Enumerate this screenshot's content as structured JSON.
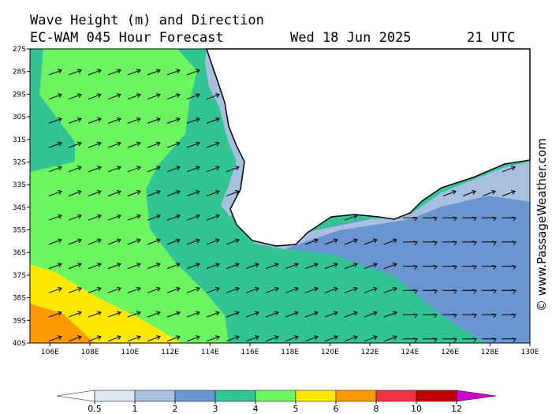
{
  "header": {
    "title": "Wave Height (m) and Direction",
    "model": "EC-WAM 045 Hour Forecast",
    "date": "Wed 18 Jun 2025",
    "time": "21 UTC"
  },
  "axes": {
    "lat": [
      "27S",
      "28S",
      "29S",
      "30S",
      "31S",
      "32S",
      "33S",
      "34S",
      "35S",
      "36S",
      "37S",
      "38S",
      "39S",
      "40S"
    ],
    "lon": [
      "106E",
      "108E",
      "110E",
      "112E",
      "114E",
      "116E",
      "118E",
      "120E",
      "122E",
      "124E",
      "126E",
      "128E",
      "130E"
    ]
  },
  "legend": {
    "levels": [
      0.5,
      1,
      2,
      3,
      4,
      5,
      6,
      8,
      10,
      12
    ],
    "colors": [
      "#ffffff",
      "#dde8f5",
      "#a8c0e0",
      "#6b95d0",
      "#33c495",
      "#6cf561",
      "#ffe800",
      "#ff9900",
      "#ee3344",
      "#c00000",
      "#cc00cc"
    ]
  },
  "credit": "© www.PassageWeather.com"
}
